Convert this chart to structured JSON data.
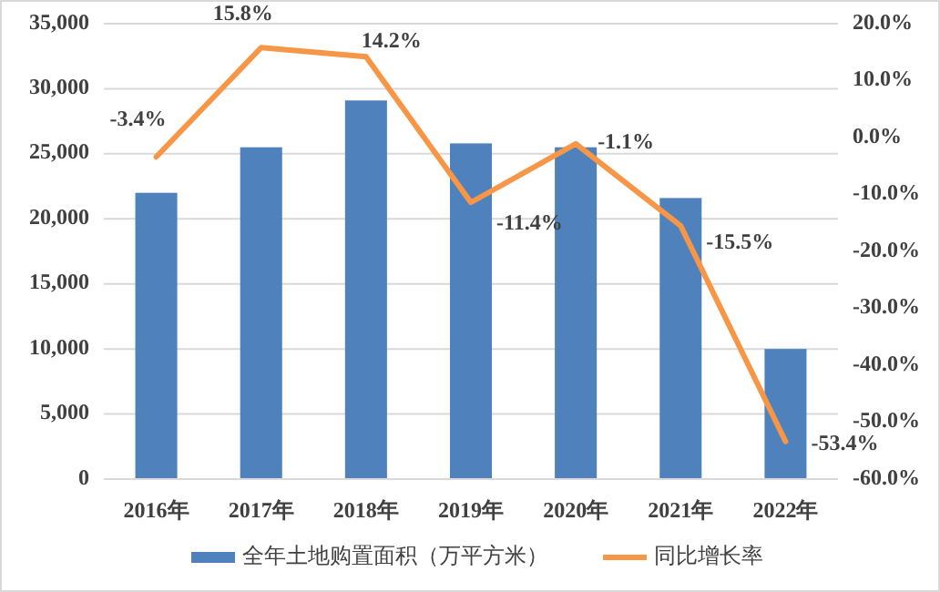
{
  "chart_data": {
    "type": "bar",
    "categories": [
      "2016年",
      "2017年",
      "2018年",
      "2019年",
      "2020年",
      "2021年",
      "2022年"
    ],
    "series": [
      {
        "name": "全年土地购置面积（万平方米）",
        "color": "#4f81bd",
        "values": [
          22000,
          25500,
          29100,
          25800,
          25500,
          21600,
          10000
        ]
      },
      {
        "name": "同比增长率",
        "type": "line",
        "axis": "y2",
        "color": "#f79646",
        "values": [
          -3.4,
          15.8,
          14.2,
          -11.4,
          -1.1,
          -15.5,
          -53.4
        ],
        "value_labels": [
          "-3.4%",
          "15.8%",
          "14.2%",
          "-11.4%",
          "-1.1%",
          "-15.5%",
          "-53.4%"
        ]
      }
    ],
    "ylim": [
      0,
      35000
    ],
    "yticks": [
      {
        "value": 0,
        "label": "0"
      },
      {
        "value": 5000,
        "label": "5,000"
      },
      {
        "value": 10000,
        "label": "10,000"
      },
      {
        "value": 15000,
        "label": "15,000"
      },
      {
        "value": 20000,
        "label": "20,000"
      },
      {
        "value": 25000,
        "label": "25,000"
      },
      {
        "value": 30000,
        "label": "30,000"
      },
      {
        "value": 35000,
        "label": "35,000"
      }
    ],
    "y2lim": [
      -60,
      20
    ],
    "y2ticks": [
      {
        "value": -60,
        "label": "-60.0%"
      },
      {
        "value": -50,
        "label": "-50.0%"
      },
      {
        "value": -40,
        "label": "-40.0%"
      },
      {
        "value": -30,
        "label": "-30.0%"
      },
      {
        "value": -20,
        "label": "-20.0%"
      },
      {
        "value": -10,
        "label": "-10.0%"
      },
      {
        "value": 0,
        "label": "0.0%"
      },
      {
        "value": 10,
        "label": "10.0%"
      },
      {
        "value": 20,
        "label": "20.0%"
      }
    ],
    "grid": "y",
    "legend": "bottom"
  }
}
